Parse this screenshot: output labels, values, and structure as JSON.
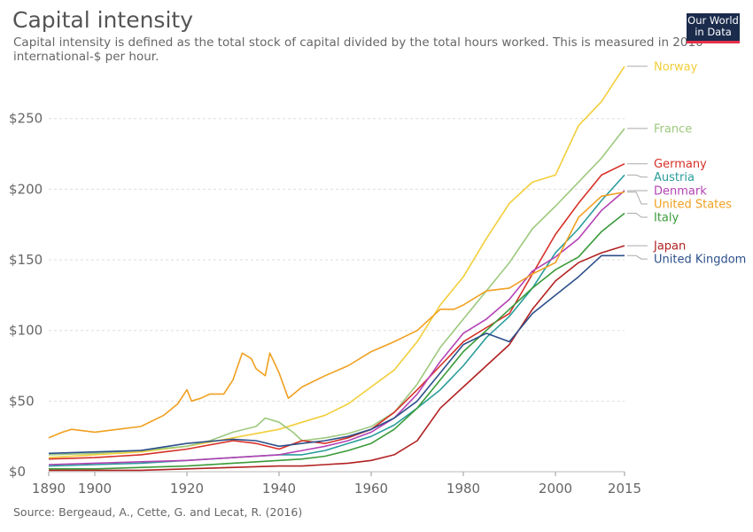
{
  "header": {
    "title": "Capital intensity",
    "subtitle": "Capital intensity is defined as the total stock of capital divided by the total hours worked. This is measured in 2010 international-$ per hour.",
    "logo_line1": "Our World",
    "logo_line2": "in Data"
  },
  "footer": {
    "source": "Source: Bergeaud, A., Cette, G. and Lecat, R. (2016)"
  },
  "chart_data": {
    "type": "line",
    "title": "Capital intensity",
    "xlabel": "",
    "ylabel": "",
    "xlim": [
      1890,
      2015
    ],
    "ylim": [
      0,
      290
    ],
    "x_ticks": [
      1890,
      1900,
      1920,
      1940,
      1960,
      1980,
      2000,
      2015
    ],
    "y_ticks": [
      0,
      50,
      100,
      150,
      200,
      250
    ],
    "y_tick_labels": [
      "$0",
      "$50",
      "$100",
      "$150",
      "$200",
      "$250"
    ],
    "grid": "horizontal-dashed",
    "legend": "right-end-labels",
    "series": [
      {
        "name": "Norway",
        "color": "#f2ce3a",
        "x": [
          1890,
          1900,
          1910,
          1920,
          1930,
          1940,
          1945,
          1950,
          1955,
          1960,
          1965,
          1970,
          1975,
          1980,
          1985,
          1990,
          1995,
          2000,
          2005,
          2010,
          2015
        ],
        "y": [
          10,
          12,
          14,
          18,
          24,
          30,
          35,
          40,
          48,
          60,
          72,
          92,
          118,
          138,
          165,
          190,
          205,
          210,
          245,
          262,
          287
        ]
      },
      {
        "name": "France",
        "color": "#9dc97e",
        "x": [
          1890,
          1900,
          1910,
          1920,
          1925,
          1930,
          1935,
          1937,
          1940,
          1943,
          1945,
          1950,
          1955,
          1960,
          1965,
          1970,
          1975,
          1980,
          1985,
          1990,
          1995,
          2000,
          2005,
          2010,
          2015
        ],
        "y": [
          12,
          13,
          15,
          18,
          22,
          28,
          32,
          38,
          35,
          28,
          22,
          24,
          27,
          32,
          42,
          62,
          88,
          108,
          128,
          148,
          172,
          188,
          205,
          222,
          243
        ]
      },
      {
        "name": "Germany",
        "color": "#d73027",
        "x": [
          1890,
          1900,
          1910,
          1920,
          1930,
          1935,
          1940,
          1945,
          1950,
          1955,
          1960,
          1965,
          1970,
          1975,
          1980,
          1985,
          1990,
          1995,
          2000,
          2005,
          2010,
          2015
        ],
        "y": [
          9,
          10,
          12,
          16,
          22,
          20,
          16,
          22,
          20,
          24,
          30,
          42,
          58,
          75,
          92,
          102,
          112,
          140,
          168,
          190,
          210,
          218
        ]
      },
      {
        "name": "Austria",
        "color": "#2a9d9b",
        "x": [
          1890,
          1900,
          1910,
          1920,
          1930,
          1940,
          1945,
          1950,
          1955,
          1960,
          1965,
          1970,
          1975,
          1980,
          1985,
          1990,
          1995,
          2000,
          2005,
          2010,
          2015
        ],
        "y": [
          4,
          5,
          6,
          8,
          10,
          12,
          12,
          15,
          20,
          25,
          33,
          45,
          58,
          75,
          95,
          110,
          130,
          155,
          172,
          192,
          210
        ]
      },
      {
        "name": "Denmark",
        "color": "#b442b4",
        "x": [
          1890,
          1900,
          1910,
          1920,
          1930,
          1940,
          1945,
          1950,
          1955,
          1960,
          1965,
          1970,
          1975,
          1980,
          1985,
          1990,
          1995,
          2000,
          2005,
          2010,
          2015
        ],
        "y": [
          5,
          6,
          7,
          8,
          10,
          12,
          15,
          18,
          22,
          28,
          38,
          55,
          78,
          98,
          108,
          122,
          142,
          152,
          165,
          185,
          199
        ]
      },
      {
        "name": "United States",
        "color": "#f0a020",
        "x": [
          1890,
          1893,
          1895,
          1900,
          1905,
          1910,
          1915,
          1918,
          1920,
          1921,
          1923,
          1925,
          1928,
          1930,
          1932,
          1934,
          1935,
          1937,
          1938,
          1940,
          1942,
          1945,
          1950,
          1955,
          1960,
          1965,
          1970,
          1975,
          1978,
          1980,
          1985,
          1990,
          1995,
          2000,
          2005,
          2010,
          2015
        ],
        "y": [
          24,
          28,
          30,
          28,
          30,
          32,
          40,
          48,
          58,
          50,
          52,
          55,
          55,
          65,
          84,
          80,
          73,
          68,
          84,
          70,
          52,
          60,
          68,
          75,
          85,
          92,
          100,
          115,
          115,
          118,
          128,
          130,
          140,
          148,
          180,
          195,
          198
        ]
      },
      {
        "name": "Italy",
        "color": "#3a9b3a",
        "x": [
          1890,
          1900,
          1910,
          1920,
          1930,
          1940,
          1945,
          1950,
          1955,
          1960,
          1965,
          1970,
          1975,
          1980,
          1985,
          1990,
          1995,
          2000,
          2005,
          2010,
          2015
        ],
        "y": [
          2,
          2,
          3,
          4,
          6,
          8,
          9,
          11,
          15,
          20,
          30,
          45,
          65,
          85,
          100,
          115,
          130,
          143,
          152,
          170,
          183
        ]
      },
      {
        "name": "Japan",
        "color": "#b22222",
        "x": [
          1890,
          1900,
          1910,
          1920,
          1930,
          1940,
          1945,
          1950,
          1955,
          1960,
          1965,
          1970,
          1975,
          1980,
          1985,
          1990,
          1995,
          2000,
          2005,
          2010,
          2015
        ],
        "y": [
          1,
          1,
          1,
          2,
          3,
          4,
          4,
          5,
          6,
          8,
          12,
          22,
          45,
          60,
          75,
          90,
          115,
          135,
          148,
          155,
          160
        ]
      },
      {
        "name": "United Kingdom",
        "color": "#2c4f8a",
        "x": [
          1890,
          1900,
          1910,
          1920,
          1930,
          1935,
          1940,
          1945,
          1950,
          1955,
          1960,
          1965,
          1970,
          1975,
          1980,
          1985,
          1990,
          1995,
          2000,
          2005,
          2010,
          2015
        ],
        "y": [
          13,
          14,
          15,
          20,
          23,
          22,
          18,
          20,
          22,
          25,
          30,
          38,
          50,
          70,
          90,
          98,
          92,
          112,
          125,
          138,
          153,
          153
        ]
      }
    ]
  }
}
